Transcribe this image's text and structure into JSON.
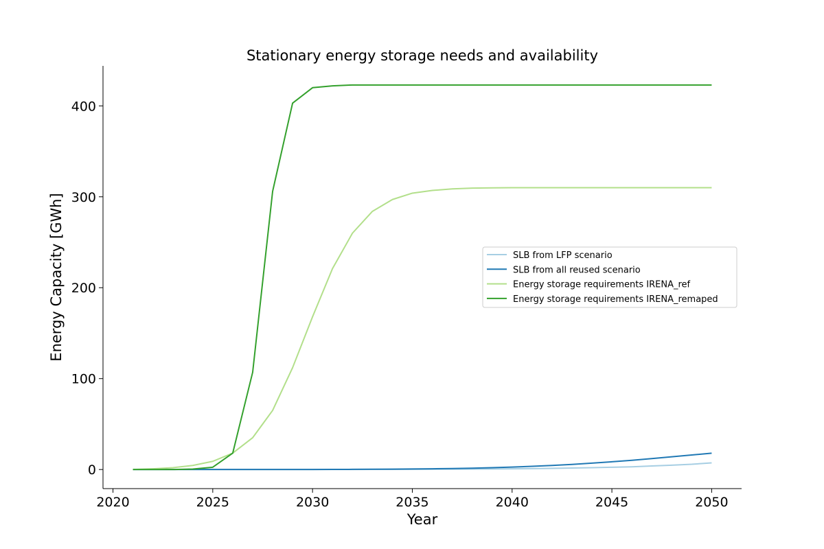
{
  "chart_data": {
    "type": "line",
    "title": "Stationary energy storage needs and availability",
    "xlabel": "Year",
    "ylabel": "Energy Capacity [GWh]",
    "xlim": [
      2019.5,
      2051.5
    ],
    "ylim": [
      -21,
      444
    ],
    "xticks": [
      2020,
      2025,
      2030,
      2035,
      2040,
      2045,
      2050
    ],
    "yticks": [
      0,
      100,
      200,
      300,
      400
    ],
    "grid": false,
    "legend_position": "center-right",
    "x": [
      2021,
      2022,
      2023,
      2024,
      2025,
      2026,
      2027,
      2028,
      2029,
      2030,
      2031,
      2032,
      2033,
      2034,
      2035,
      2036,
      2037,
      2038,
      2039,
      2040,
      2041,
      2042,
      2043,
      2044,
      2045,
      2046,
      2047,
      2048,
      2049,
      2050
    ],
    "series": [
      {
        "name": "SLB from LFP scenario",
        "color": "#a6cee3",
        "values": [
          0,
          0,
          0,
          0,
          0,
          0,
          0,
          0,
          0,
          0,
          0,
          0.05,
          0.1,
          0.15,
          0.2,
          0.3,
          0.4,
          0.5,
          0.6,
          0.8,
          1.0,
          1.3,
          1.6,
          2.0,
          2.5,
          3.0,
          3.9,
          4.8,
          5.8,
          7.3
        ]
      },
      {
        "name": "SLB from all reused scenario",
        "color": "#1f78b4",
        "values": [
          0,
          0,
          0,
          0,
          0,
          0,
          0,
          0,
          0,
          0,
          0.1,
          0.2,
          0.3,
          0.4,
          0.6,
          0.8,
          1.1,
          1.5,
          2.0,
          2.7,
          3.5,
          4.5,
          5.6,
          7.0,
          8.5,
          10.1,
          12.0,
          14.0,
          16.0,
          18.0
        ]
      },
      {
        "name": "Energy storage requirements IRENA_ref",
        "color": "#b2df8a",
        "values": [
          0,
          0.8,
          2,
          4.5,
          9,
          18,
          35,
          65,
          112,
          168,
          221,
          260,
          284,
          297,
          304,
          307,
          308.7,
          309.5,
          309.8,
          310,
          310,
          310,
          310,
          310,
          310,
          310,
          310,
          310,
          310,
          310
        ]
      },
      {
        "name": "Energy storage requirements IRENA_remaped",
        "color": "#33a02c",
        "values": [
          0,
          0,
          0,
          0.5,
          2.5,
          18,
          107,
          306,
          403,
          420,
          422,
          423,
          423,
          423,
          423,
          423,
          423,
          423,
          423,
          423,
          423,
          423,
          423,
          423,
          423,
          423,
          423,
          423,
          423,
          423
        ]
      }
    ]
  }
}
